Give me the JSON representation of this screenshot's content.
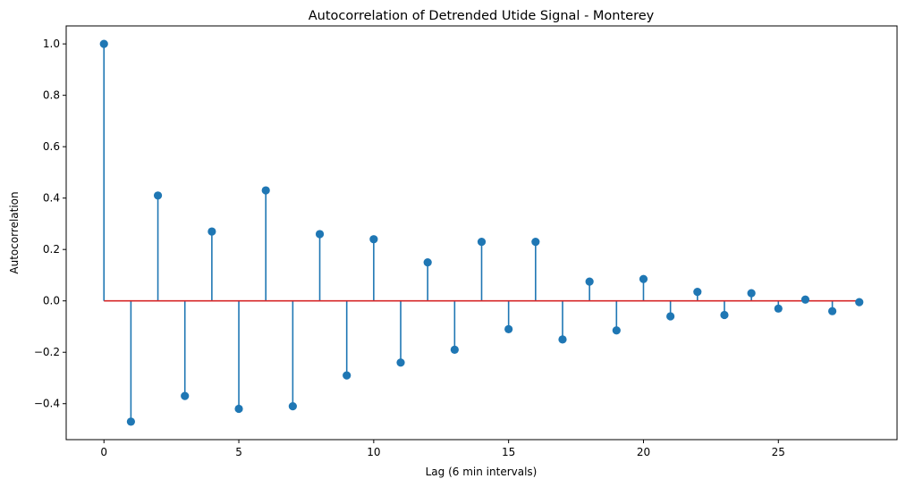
{
  "chart_data": {
    "type": "stem",
    "title": "Autocorrelation of Detrended Utide Signal - Monterey",
    "xlabel": "Lag (6 min intervals)",
    "ylabel": "Autocorrelation",
    "xlim": [
      -1.4,
      29.4
    ],
    "ylim": [
      -0.54,
      1.07
    ],
    "x_ticks": [
      0,
      5,
      10,
      15,
      20,
      25
    ],
    "y_ticks": [
      -0.4,
      -0.2,
      0.0,
      0.2,
      0.4,
      0.6,
      0.8,
      1.0
    ],
    "y_tick_labels": [
      "−0.4",
      "−0.2",
      "0.0",
      "0.2",
      "0.4",
      "0.6",
      "0.8",
      "1.0"
    ],
    "grid": false,
    "x": [
      0,
      1,
      2,
      3,
      4,
      5,
      6,
      7,
      8,
      9,
      10,
      11,
      12,
      13,
      14,
      15,
      16,
      17,
      18,
      19,
      20,
      21,
      22,
      23,
      24,
      25,
      26,
      27,
      28
    ],
    "values": [
      1.0,
      -0.47,
      0.41,
      -0.37,
      0.27,
      -0.42,
      0.43,
      -0.41,
      0.26,
      -0.29,
      0.24,
      -0.24,
      0.15,
      -0.19,
      0.23,
      -0.11,
      0.23,
      -0.15,
      0.075,
      -0.115,
      0.085,
      -0.06,
      0.035,
      -0.055,
      0.03,
      -0.03,
      0.005,
      -0.04,
      -0.005
    ],
    "colors": {
      "stem": "#1f77b4",
      "marker": "#1f77b4",
      "baseline": "#d62728",
      "axes": "#000000"
    }
  }
}
